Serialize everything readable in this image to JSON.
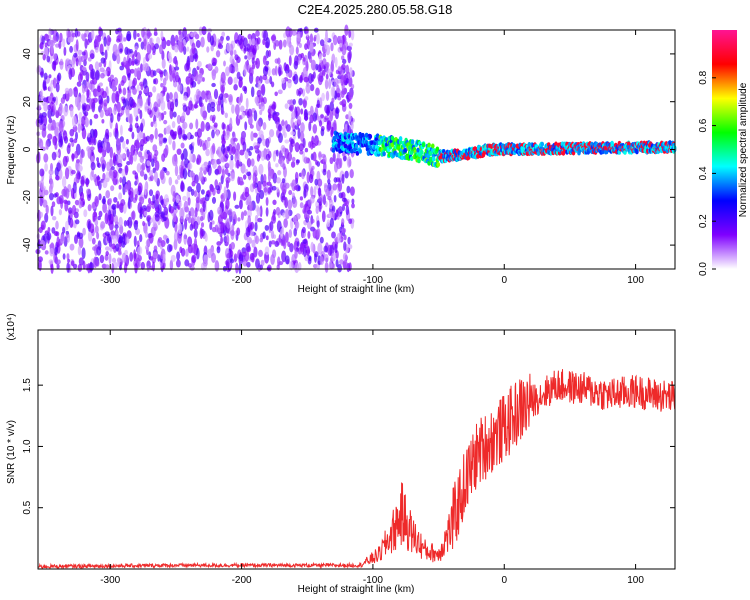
{
  "title": "C2E4.2025.280.05.58.G18",
  "chart_data": [
    {
      "type": "heatmap",
      "xlabel": "Height of straight line (km)",
      "ylabel": "Frequency (Hz)",
      "xlim": [
        -355,
        130
      ],
      "ylim": [
        -50,
        50
      ],
      "xticks": [
        -300,
        -200,
        -100,
        0,
        100
      ],
      "yticks": [
        -40,
        -20,
        0,
        20,
        40
      ],
      "grid": false,
      "colorbar": {
        "label": "Normalized spectral amplitude",
        "range": [
          0,
          1
        ],
        "ticks": [
          "0.0",
          "0.2",
          "0.4",
          "0.6",
          "0.8"
        ],
        "colormap": [
          "#ffffff",
          "#7f00ff",
          "#0000ff",
          "#00ffff",
          "#00ff00",
          "#ffff00",
          "#ff0000",
          "#ff1493"
        ]
      },
      "features": {
        "noise_region_x": [
          -355,
          -115
        ],
        "noise_amplitude": 0.15,
        "carrier_line_points": [
          {
            "x": -130,
            "y": 3
          },
          {
            "x": -100,
            "y": 2
          },
          {
            "x": -70,
            "y": 0
          },
          {
            "x": -50,
            "y": -3
          },
          {
            "x": -30,
            "y": -2
          },
          {
            "x": -10,
            "y": 0
          },
          {
            "x": 130,
            "y": 1
          }
        ]
      }
    },
    {
      "type": "line",
      "xlabel": "Height of straight line (km)",
      "ylabel": "SNR (10 * v/v)",
      "yscale_label": "(x10⁴)",
      "xlim": [
        -355,
        130
      ],
      "ylim": [
        0,
        1.95
      ],
      "xticks": [
        -300,
        -200,
        -100,
        0,
        100
      ],
      "yticks": [
        "0.5",
        "1.0",
        "1.5"
      ],
      "grid": false,
      "series": [
        {
          "color": "#ee2a2a",
          "points": [
            {
              "x": -355,
              "y": 0.02
            },
            {
              "x": -250,
              "y": 0.03
            },
            {
              "x": -180,
              "y": 0.03
            },
            {
              "x": -110,
              "y": 0.03
            },
            {
              "x": -95,
              "y": 0.12
            },
            {
              "x": -85,
              "y": 0.3
            },
            {
              "x": -78,
              "y": 0.45
            },
            {
              "x": -70,
              "y": 0.28
            },
            {
              "x": -60,
              "y": 0.15
            },
            {
              "x": -50,
              "y": 0.12
            },
            {
              "x": -40,
              "y": 0.35
            },
            {
              "x": -30,
              "y": 0.7
            },
            {
              "x": -20,
              "y": 0.95
            },
            {
              "x": -10,
              "y": 1.05
            },
            {
              "x": 0,
              "y": 1.15
            },
            {
              "x": 10,
              "y": 1.28
            },
            {
              "x": 25,
              "y": 1.4
            },
            {
              "x": 40,
              "y": 1.5
            },
            {
              "x": 60,
              "y": 1.47
            },
            {
              "x": 80,
              "y": 1.42
            },
            {
              "x": 100,
              "y": 1.45
            },
            {
              "x": 115,
              "y": 1.42
            },
            {
              "x": 130,
              "y": 1.4
            }
          ]
        }
      ]
    }
  ]
}
